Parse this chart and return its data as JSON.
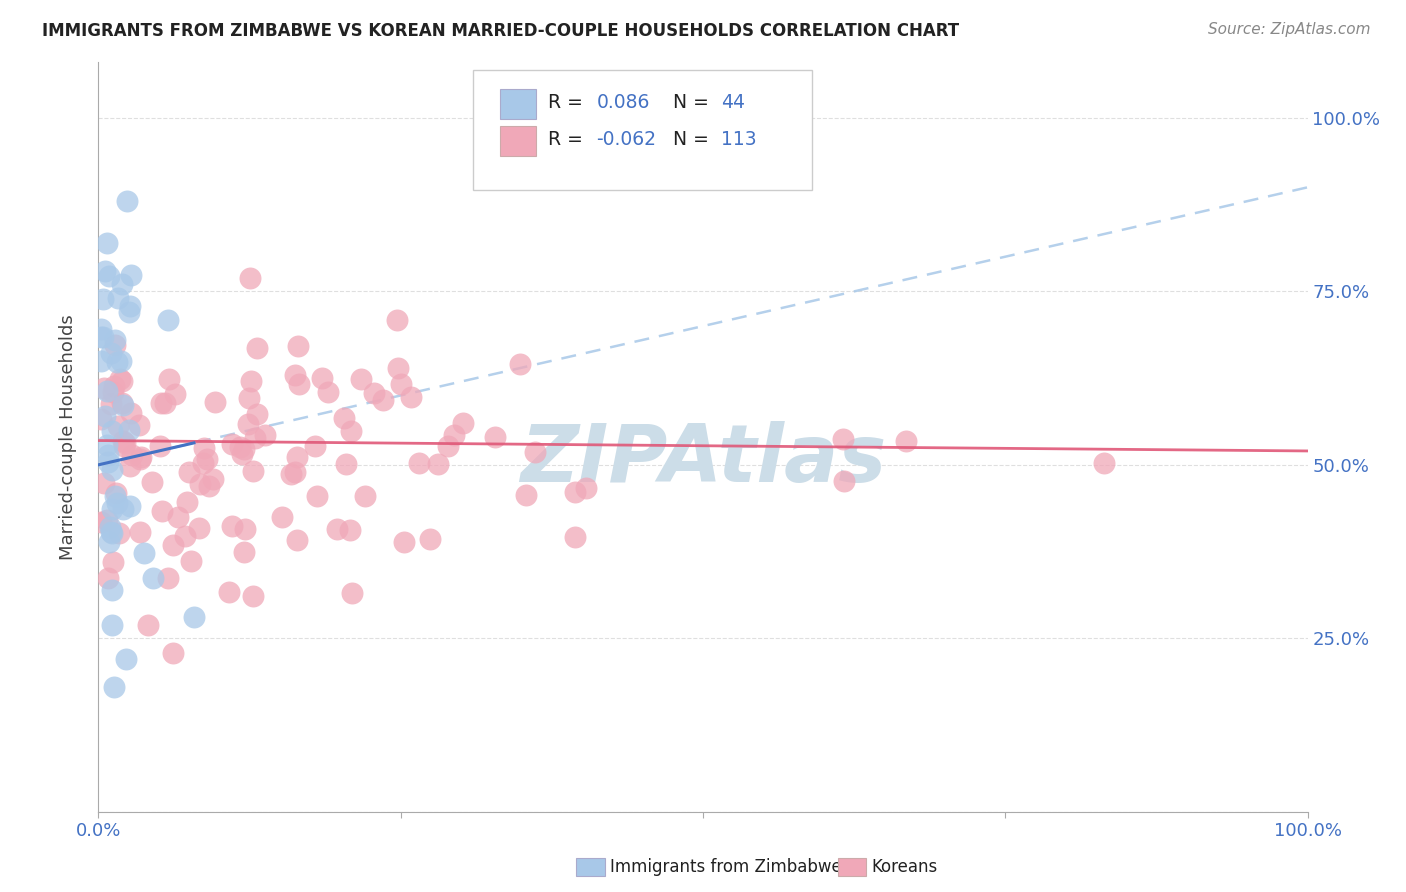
{
  "title": "IMMIGRANTS FROM ZIMBABWE VS KOREAN MARRIED-COUPLE HOUSEHOLDS CORRELATION CHART",
  "source": "Source: ZipAtlas.com",
  "ylabel": "Married-couple Households",
  "r_blue": 0.086,
  "n_blue": 44,
  "r_pink": -0.062,
  "n_pink": 113,
  "color_blue_scatter": "#a8c8e8",
  "color_pink_scatter": "#f0a8b8",
  "color_blue_line": "#4472c4",
  "color_pink_line": "#e05878",
  "color_blue_dashed": "#a8c8e8",
  "color_axis_labels": "#4472c4",
  "color_legend_text_r": "#4472c4",
  "color_legend_text_n": "#4472c4",
  "watermark_color": "#ccdde8",
  "background_color": "#ffffff",
  "grid_color": "#d8d8d8",
  "title_color": "#222222",
  "source_color": "#888888"
}
